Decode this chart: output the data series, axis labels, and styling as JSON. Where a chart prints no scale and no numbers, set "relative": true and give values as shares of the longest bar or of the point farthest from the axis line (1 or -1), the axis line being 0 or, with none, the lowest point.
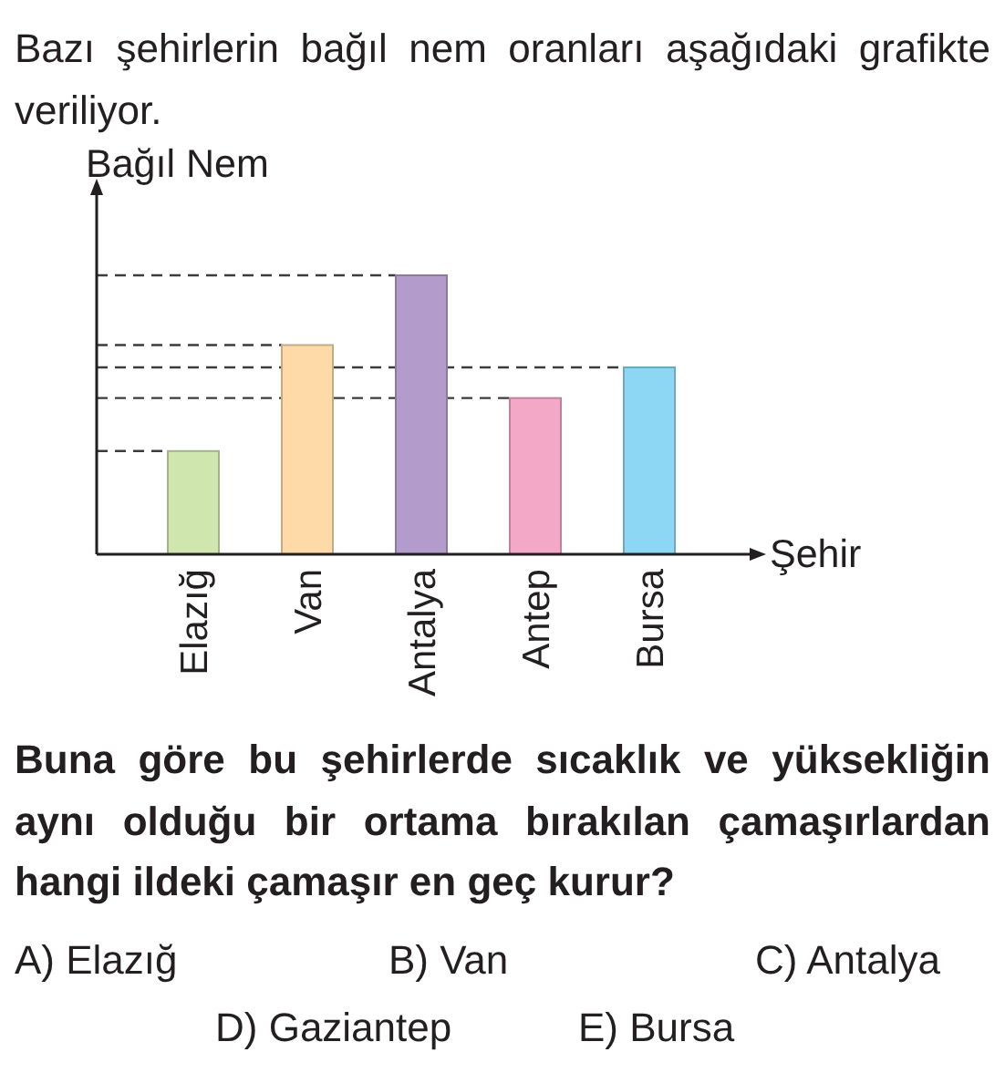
{
  "chart_data": {
    "type": "bar",
    "title": "Bazı şehirlerin bağıl nem oranları aşağıdaki grafikte veriliyor.",
    "ylabel": "Bağıl Nem",
    "xlabel": "Şehir",
    "categories": [
      "Elazığ",
      "Van",
      "Antalya",
      "Antep",
      "Bursa"
    ],
    "values": [
      0.37,
      0.75,
      1,
      0.56,
      0.67
    ],
    "colors": [
      "#cfe7ae",
      "#fedaa8",
      "#b39bcc",
      "#f4a8c8",
      "#8ed7f4"
    ],
    "relative": true,
    "ref_lines": [
      {
        "axis": "y",
        "value": 0.37,
        "color": "#3c3c3c",
        "line_style": "dashed"
      },
      {
        "axis": "y",
        "value": 0.75,
        "color": "#3c3c3c",
        "line_style": "dashed"
      },
      {
        "axis": "y",
        "value": 1,
        "color": "#3c3c3c",
        "line_style": "dashed"
      },
      {
        "axis": "y",
        "value": 0.56,
        "color": "#3c3c3c",
        "line_style": "dashed"
      },
      {
        "axis": "y",
        "value": 0.67,
        "color": "#3c3c3c",
        "line_style": "dashed"
      }
    ],
    "annotations": [
      "Buna göre bu şehirlerde sıcaklık ve yüksekliğin aynı olduğu bir ortama bırakılan çamaşırlardan hangi ildeki çamaşır en geç kurur?",
      "A) Elazığ",
      "B) Van",
      "C) Antalya",
      "D) Gaziantep",
      "E) Bursa"
    ]
  }
}
